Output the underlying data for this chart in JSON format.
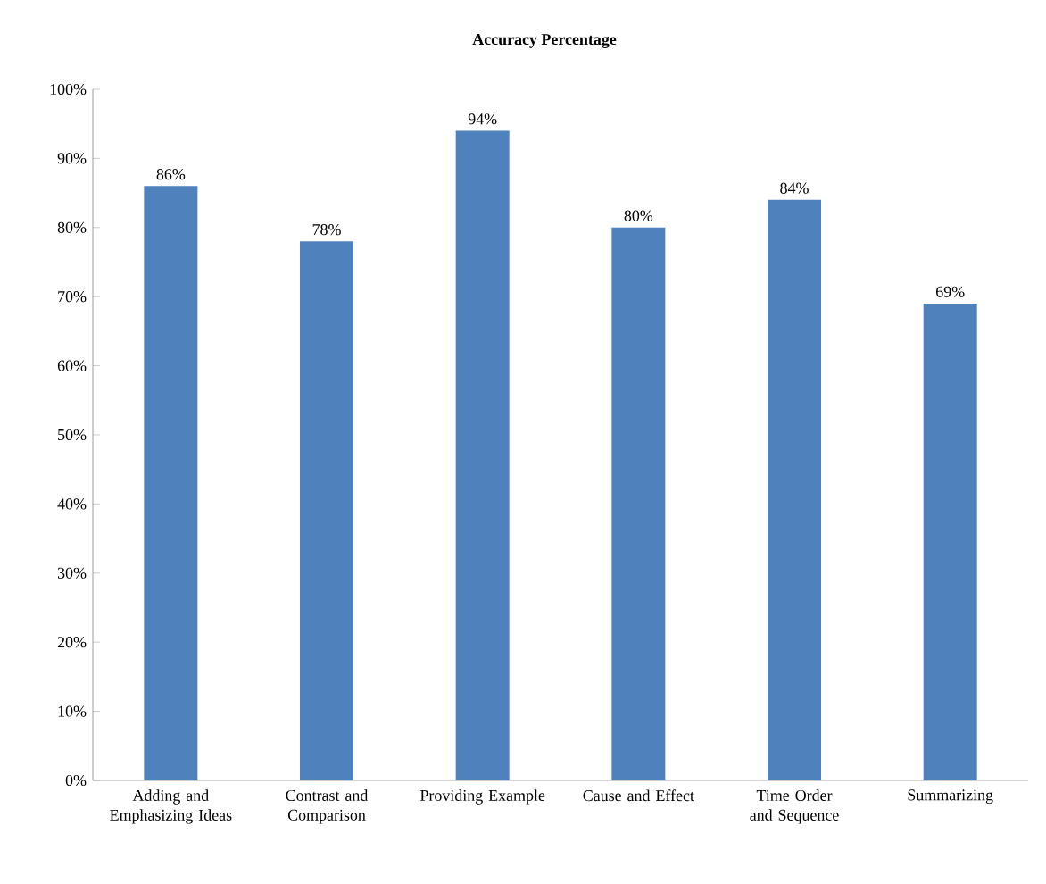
{
  "chart_data": {
    "type": "bar",
    "title": "Accuracy Percentage",
    "categories": [
      "Adding and Emphasizing Ideas",
      "Contrast and Comparison",
      "Providing Example",
      "Cause and Effect",
      "Time Order and Sequence",
      "Summarizing"
    ],
    "values": [
      86,
      78,
      94,
      80,
      84,
      69
    ],
    "value_labels": [
      "86%",
      "78%",
      "94%",
      "80%",
      "84%",
      "69%"
    ],
    "color": "#4f81bd",
    "ylim": [
      0,
      100
    ],
    "yticks": [
      {
        "value": 0,
        "label": "0%"
      },
      {
        "value": 10,
        "label": "10%"
      },
      {
        "value": 20,
        "label": "20%"
      },
      {
        "value": 30,
        "label": "30%"
      },
      {
        "value": 40,
        "label": "40%"
      },
      {
        "value": 50,
        "label": "50%"
      },
      {
        "value": 60,
        "label": "60%"
      },
      {
        "value": 70,
        "label": "70%"
      },
      {
        "value": 80,
        "label": "80%"
      },
      {
        "value": 90,
        "label": "90%"
      },
      {
        "value": 100,
        "label": "100%"
      }
    ],
    "grid": false
  }
}
